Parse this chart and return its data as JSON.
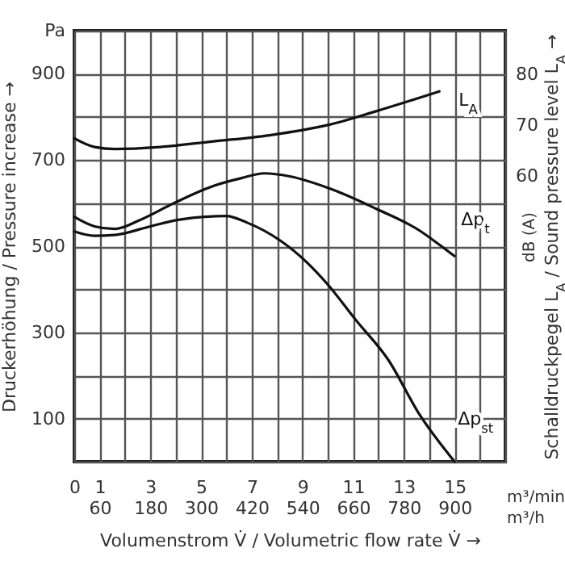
{
  "chart_data": {
    "type": "line",
    "xlabel": "Volumenstrom V̇ / Volumetric flow rate V̇  →",
    "ylabel": "Druckerhöhung / Pressure increase  →",
    "y2label": "Schalldruckpegel L$_{A}$ / Sound pressure level L$_{A}$ →",
    "annotations": [
      "m³/min",
      "m³/h",
      "dB (A)"
    ],
    "xlim": [
      0,
      17
    ],
    "xticks": [
      0,
      1,
      {
        "value": 2,
        "label": null
      },
      3,
      {
        "value": 4,
        "label": null
      },
      5,
      {
        "value": 6,
        "label": null
      },
      7,
      {
        "value": 8,
        "label": null
      },
      9,
      {
        "value": 10,
        "label": null
      },
      11,
      {
        "value": 12,
        "label": null
      },
      13,
      {
        "value": 14,
        "label": null
      },
      15,
      {
        "value": 16,
        "label": null
      },
      {
        "value": 17,
        "label": null
      }
    ],
    "x2lim": [
      0,
      1020
    ],
    "x2ticks": [
      60,
      180,
      300,
      420,
      540,
      660,
      780,
      900
    ],
    "ylim": [
      0,
      1000
    ],
    "yticks": [
      {
        "value": 0,
        "label": null
      },
      100,
      {
        "value": 200,
        "label": null
      },
      300,
      {
        "value": 400,
        "label": null
      },
      500,
      {
        "value": 600,
        "label": null
      },
      700,
      {
        "value": 800,
        "label": null
      },
      900,
      {
        "value": 1000,
        "label": "Pa"
      }
    ],
    "y2lim": [
      4,
      88.5
    ],
    "y2ticks": [
      60,
      70,
      80
    ],
    "grid": true,
    "marker": "none",
    "line_style": "solid",
    "series": [
      {
        "name": "L$_{A}$",
        "color": "#111111",
        "axis": "y2",
        "x": [
          0,
          0.8,
          1.6,
          3.4,
          5.5,
          7.7,
          10,
          11.9,
          14.4
        ],
        "values": [
          67.4,
          65.7,
          65.3,
          65.7,
          66.8,
          68,
          70,
          72.7,
          76.6
        ]
      },
      {
        "name": "Δp$_{t}$",
        "color": "#111111",
        "x": [
          0,
          0.8,
          1.6,
          2.6,
          3.9,
          5.5,
          6.6,
          7.5,
          8.5,
          10.2,
          11.9,
          13.6,
          14.5,
          15
        ],
        "values": [
          568,
          546,
          540,
          561,
          599,
          640,
          658,
          669,
          662,
          631,
          587,
          537,
          499,
          477
        ]
      },
      {
        "name": "Δp$_{st}$",
        "color": "#111111",
        "x": [
          0,
          0.8,
          1.6,
          3,
          4.1,
          6,
          6.8,
          8.1,
          9.2,
          10,
          11.1,
          12.4,
          13.6,
          15
        ],
        "values": [
          534,
          524,
          526,
          546,
          561,
          570,
          555,
          514,
          461,
          411,
          329,
          235,
          111,
          0
        ]
      }
    ]
  }
}
